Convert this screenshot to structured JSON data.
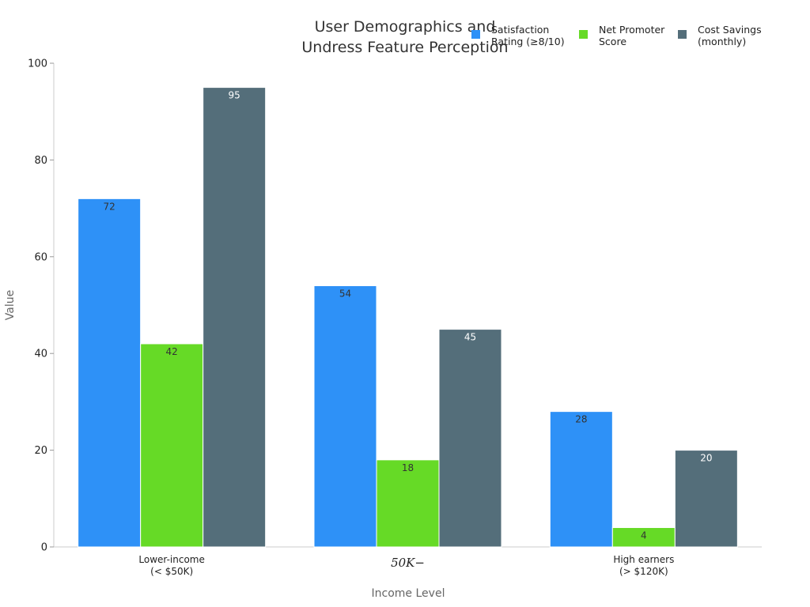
{
  "chart_data": {
    "type": "bar",
    "title": "User Demographics and Undress Feature Perception",
    "title_lines": [
      "User Demographics and",
      "Undress Feature Perception"
    ],
    "xlabel": "Income Level",
    "ylabel": "Value",
    "ylim": [
      0,
      100
    ],
    "yticks": [
      0,
      20,
      40,
      60,
      80,
      100
    ],
    "grid": false,
    "legend_position": "top-right",
    "categories": [
      "Lower-income (< $50K)",
      "50K–",
      "High earners (> $120K)"
    ],
    "category_lines": [
      [
        "Lower-income",
        "(< $50K)"
      ],
      [
        "50K−"
      ],
      [
        "High earners",
        "(> $120K)"
      ]
    ],
    "series": [
      {
        "name": "Satisfaction Rating (≥8/10)",
        "name_lines": [
          "Satisfaction",
          "Rating (≥8/10)"
        ],
        "color": "#2e91f7",
        "label_color": "#333333",
        "values": [
          72,
          54,
          28
        ]
      },
      {
        "name": "Net Promoter Score",
        "name_lines": [
          "Net Promoter",
          "Score"
        ],
        "color": "#66da26",
        "label_color": "#333333",
        "values": [
          42,
          18,
          4
        ]
      },
      {
        "name": "Cost Savings (monthly)",
        "name_lines": [
          "Cost Savings",
          "(monthly)"
        ],
        "color": "#546e7a",
        "label_color": "#ffffff",
        "values": [
          95,
          45,
          20
        ]
      }
    ]
  }
}
